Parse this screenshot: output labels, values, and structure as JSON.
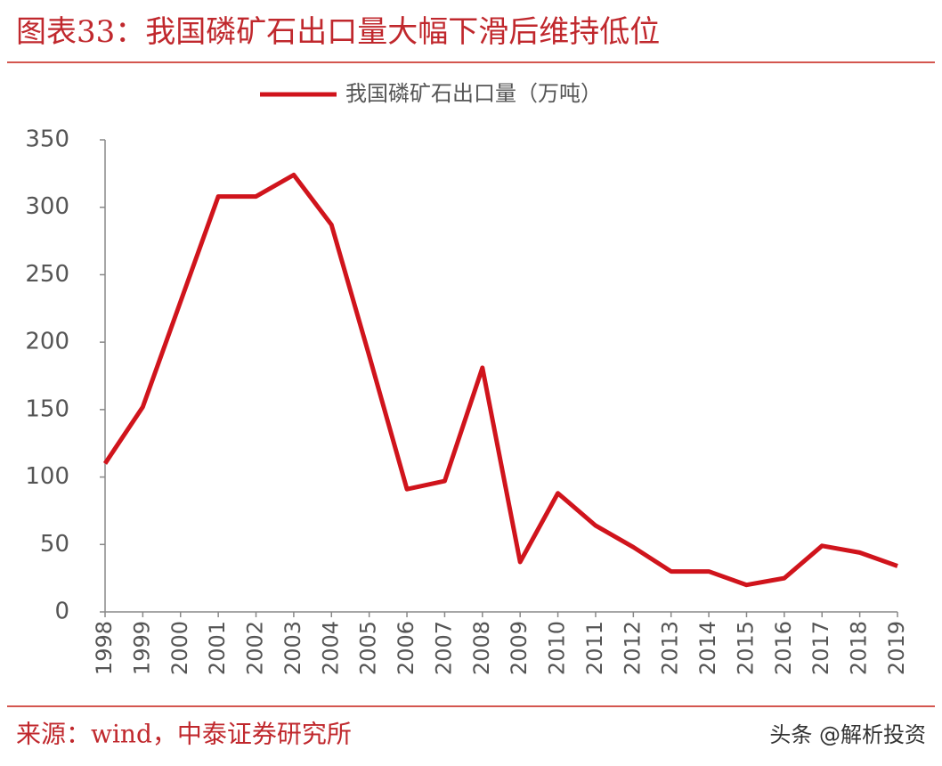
{
  "chart_data": {
    "type": "line",
    "title": "图表33：我国磷矿石出口量大幅下滑后维持低位",
    "categories": [
      "1998",
      "1999",
      "2000",
      "2001",
      "2002",
      "2003",
      "2004",
      "2005",
      "2006",
      "2007",
      "2008",
      "2009",
      "2010",
      "2011",
      "2012",
      "2013",
      "2014",
      "2015",
      "2016",
      "2017",
      "2018",
      "2019"
    ],
    "series": [
      {
        "name": "我国磷矿石出口量（万吨）",
        "color": "#d0141c",
        "values": [
          110,
          152,
          230,
          308,
          308,
          324,
          287,
          190,
          91,
          97,
          181,
          37,
          88,
          64,
          48,
          30,
          30,
          20,
          25,
          49,
          44,
          34
        ]
      }
    ],
    "ylim": [
      0,
      350
    ],
    "yticks": [
      0,
      50,
      100,
      150,
      200,
      250,
      300,
      350
    ],
    "legend": "top",
    "source": "来源：wind，中泰证券研究所",
    "watermark": "头条 @解析投资"
  }
}
